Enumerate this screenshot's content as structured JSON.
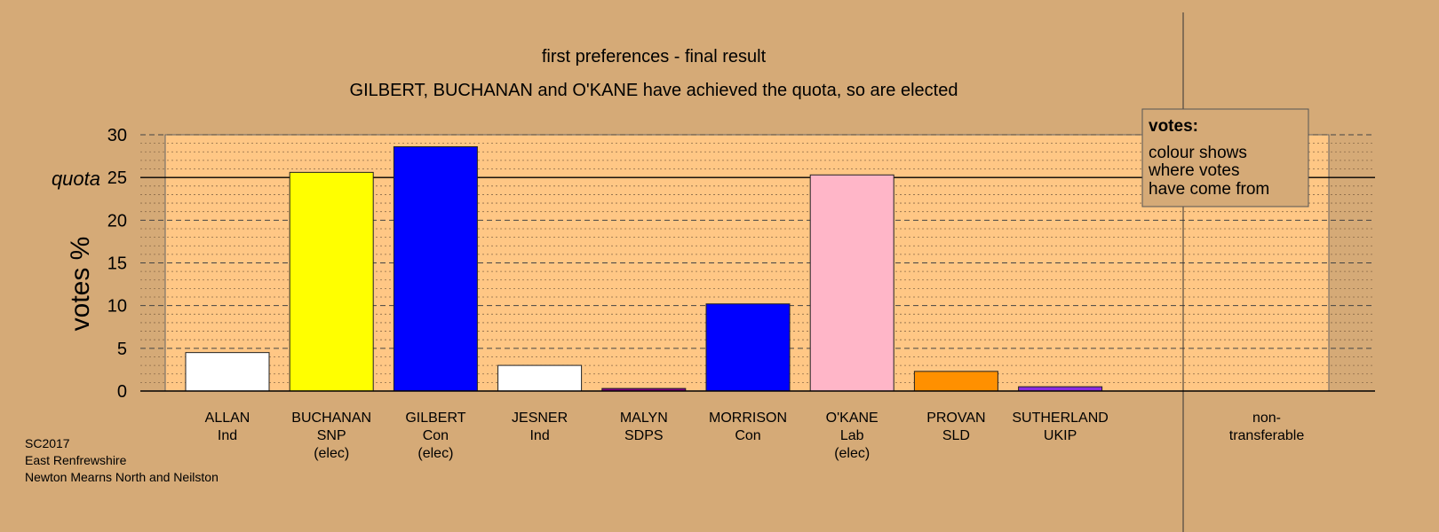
{
  "chart_data": {
    "type": "bar",
    "title": "first preferences - final result",
    "subtitle": "GILBERT, BUCHANAN and O'KANE have achieved the quota, so are elected",
    "ylabel": "votes %",
    "ylim": [
      0,
      30
    ],
    "yticks": [
      "0",
      "5",
      "10",
      "15",
      "20",
      "25",
      "30"
    ],
    "quota_label": "quota",
    "quota_value": 25,
    "categories": [
      {
        "name": "ALLAN",
        "party": "Ind",
        "status": ""
      },
      {
        "name": "BUCHANAN",
        "party": "SNP",
        "status": "(elec)"
      },
      {
        "name": "GILBERT",
        "party": "Con",
        "status": "(elec)"
      },
      {
        "name": "JESNER",
        "party": "Ind",
        "status": ""
      },
      {
        "name": "MALYN",
        "party": "SDPS",
        "status": ""
      },
      {
        "name": "MORRISON",
        "party": "Con",
        "status": ""
      },
      {
        "name": "O'KANE",
        "party": "Lab",
        "status": "(elec)"
      },
      {
        "name": "PROVAN",
        "party": "SLD",
        "status": ""
      },
      {
        "name": "SUTHERLAND",
        "party": "UKIP",
        "status": ""
      }
    ],
    "values": [
      4.5,
      25.6,
      28.6,
      3.0,
      0.3,
      10.2,
      25.3,
      2.3,
      0.5
    ],
    "colors": [
      "#ffffff",
      "#ffff00",
      "#0000ff",
      "#ffffff",
      "#800080",
      "#0000ff",
      "#ffb6c8",
      "#ff9000",
      "#8a2be2"
    ],
    "non_transferable": {
      "label_line1": "non-",
      "label_line2": "transferable",
      "value": 0
    },
    "legend": {
      "title": "votes:",
      "lines": [
        "colour shows",
        "where votes",
        "have come from"
      ],
      "placement": "top-right"
    },
    "grid": true
  },
  "credits": [
    "SC2017",
    "East Renfrewshire",
    "Newton Mearns North and Neilston"
  ],
  "colors": {
    "background": "#d5aa77",
    "plot_area": "#ffc785"
  }
}
